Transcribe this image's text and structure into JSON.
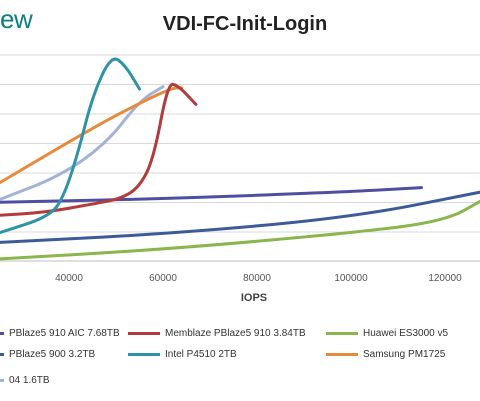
{
  "header": {
    "logo_text": "ew",
    "logo_color": "#0c7f86"
  },
  "chart_data": {
    "type": "line",
    "title": "VDI-FC-Init-Login",
    "xlabel": "IOPS",
    "ylabel": "",
    "x_ticks": [
      40000,
      60000,
      80000,
      100000,
      120000
    ],
    "x_tick_labels": [
      "40000",
      "60000",
      "80000",
      "100000",
      "120000"
    ],
    "grid": true,
    "legend_position": "bottom",
    "series": [
      {
        "name": "PBlaze5 910 AIC 7.68TB",
        "color": "#4e4fa0",
        "points": [
          [
            25000,
            2.6
          ],
          [
            60000,
            2.9
          ],
          [
            100000,
            3.5
          ],
          [
            115000,
            3.85
          ]
        ]
      },
      {
        "name": "Memblaze PBlaze5 910 3.84TB",
        "color": "#b23b3b",
        "points": [
          [
            25000,
            1.5
          ],
          [
            35000,
            1.75
          ],
          [
            45000,
            2.45
          ],
          [
            51000,
            2.9
          ],
          [
            55000,
            3.9
          ],
          [
            58000,
            6.3
          ],
          [
            61000,
            12.6
          ],
          [
            63000,
            12.6
          ],
          [
            67000,
            10.9
          ]
        ]
      },
      {
        "name": "Huawei ES3000 v5",
        "color": "#8bb54d",
        "points": [
          [
            25000,
            -2.2
          ],
          [
            60000,
            -1.4
          ],
          [
            100000,
            0.0
          ],
          [
            120000,
            1.0
          ],
          [
            128000,
            2.8
          ]
        ]
      },
      {
        "name": "PBlaze5 900 3.2TB",
        "color": "#3d5a99",
        "points": [
          [
            25000,
            -0.8
          ],
          [
            60000,
            -0.1
          ],
          [
            100000,
            1.3
          ],
          [
            128000,
            3.5
          ]
        ]
      },
      {
        "name": "Intel P4510 2TB",
        "color": "#2f93a8",
        "points": [
          [
            25000,
            0.0
          ],
          [
            36000,
            1.4
          ],
          [
            39000,
            3.2
          ],
          [
            42000,
            6.9
          ],
          [
            45000,
            11.6
          ],
          [
            49000,
            15.1
          ],
          [
            52000,
            14.2
          ],
          [
            55000,
            12.2
          ]
        ]
      },
      {
        "name": "Samsung PM1725",
        "color": "#e88a3c",
        "points": [
          [
            25000,
            4.2
          ],
          [
            45000,
            8.9
          ],
          [
            55000,
            11.0
          ],
          [
            62000,
            12.3
          ],
          [
            64000,
            12.3
          ]
        ]
      },
      {
        "name": "",
        "color": "#a3b3d8",
        "points": [
          [
            25000,
            2.8
          ],
          [
            38000,
            4.8
          ],
          [
            48000,
            7.6
          ],
          [
            55000,
            11.2
          ],
          [
            60000,
            12.4
          ]
        ]
      }
    ],
    "legend": [
      {
        "label": "PBlaze5 910 AIC 7.68TB",
        "color": "#4e4fa0"
      },
      {
        "label": "Memblaze PBlaze5 910 3.84TB",
        "color": "#b23b3b"
      },
      {
        "label": "Huawei ES3000 v5",
        "color": "#8bb54d"
      },
      {
        "label": "PBlaze5 900 3.2TB",
        "color": "#3d5a99"
      },
      {
        "label": "Intel P4510 2TB",
        "color": "#2f93a8"
      },
      {
        "label": "Samsung PM1725",
        "color": "#e88a3c"
      },
      {
        "label": "04 1.6TB",
        "color": "#a3b3d8"
      }
    ]
  }
}
